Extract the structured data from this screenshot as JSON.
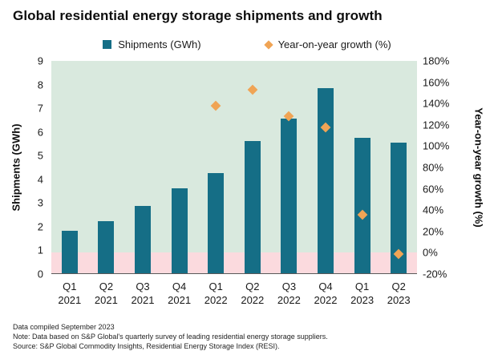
{
  "title": "Global residential energy storage shipments and growth",
  "legend": {
    "items": [
      {
        "label": "Shipments (GWh)",
        "marker": "square"
      },
      {
        "label": "Year-on-year growth (%)",
        "marker": "diamond"
      }
    ]
  },
  "colors": {
    "bar": "#156e86",
    "marker": "#f0a455",
    "plot_bg": "#d9e9de",
    "neg_band": "#fbdade"
  },
  "chart_data": {
    "type": "combo",
    "categories": [
      {
        "quarter": "Q1",
        "year": "2021"
      },
      {
        "quarter": "Q2",
        "year": "2021"
      },
      {
        "quarter": "Q3",
        "year": "2021"
      },
      {
        "quarter": "Q4",
        "year": "2021"
      },
      {
        "quarter": "Q1",
        "year": "2022"
      },
      {
        "quarter": "Q2",
        "year": "2022"
      },
      {
        "quarter": "Q3",
        "year": "2022"
      },
      {
        "quarter": "Q4",
        "year": "2022"
      },
      {
        "quarter": "Q1",
        "year": "2023"
      },
      {
        "quarter": "Q2",
        "year": "2023"
      }
    ],
    "series": [
      {
        "name": "Shipments (GWh)",
        "type": "bar",
        "axis": "left",
        "values": [
          1.8,
          2.2,
          2.85,
          3.6,
          4.25,
          5.6,
          6.55,
          7.85,
          5.75,
          5.55
        ]
      },
      {
        "name": "Year-on-year growth (%)",
        "type": "scatter",
        "axis": "right",
        "values": [
          null,
          null,
          null,
          null,
          138,
          153,
          128,
          117,
          35,
          -2
        ]
      }
    ],
    "left_axis": {
      "label": "Shipments (GWh)",
      "min": 0,
      "max": 9,
      "step": 1
    },
    "right_axis": {
      "label": "Year-on-year growth (%)",
      "min": -20,
      "max": 180,
      "step": 20,
      "suffix": "%"
    },
    "negative_band_below": 0,
    "legend_position": "top",
    "grid": false
  },
  "footnotes": [
    "Data compiled September 2023",
    "Note: Data based on S&P Global's quarterly survey of leading residential energy storage suppliers.",
    "Source: S&P Global Commodity Insights, Residential Energy Storage Index (RESI)."
  ]
}
